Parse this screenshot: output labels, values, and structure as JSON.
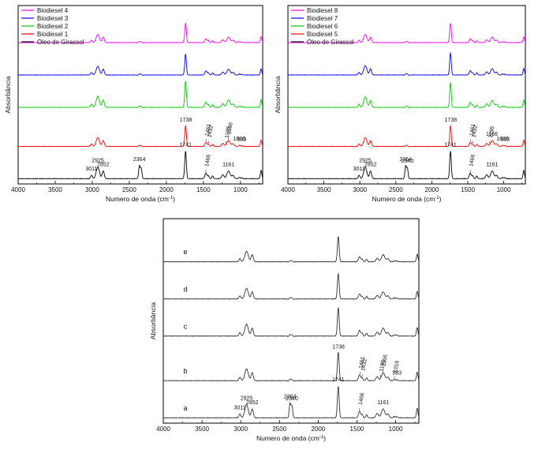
{
  "chart_data": [
    {
      "type": "line",
      "xlabel": "Numero de onda (cm",
      "xlabel_sup": "-1",
      "xlabel_end": ")",
      "ylabel": "Absorbância",
      "xlim": [
        4000,
        700
      ],
      "xticks": [
        4000,
        3500,
        3000,
        2500,
        2000,
        1500,
        1000
      ],
      "legend_position": "top-left",
      "legend": [
        "Biodiesel 4",
        "Biodiesel 3",
        "Biodiesel 2",
        "Biodiesel 1",
        "Óleo de Girassol"
      ],
      "series": [
        {
          "name": "Óleo de Girassol",
          "color": "#000000",
          "offset": 0.0,
          "scale": 1.0
        },
        {
          "name": "Biodiesel 1",
          "color": "#ff0000",
          "offset": 1.0,
          "scale": 0.75
        },
        {
          "name": "Biodiesel 2",
          "color": "#00cc00",
          "offset": 2.2,
          "scale": 0.95
        },
        {
          "name": "Biodiesel 3",
          "color": "#0000ff",
          "offset": 3.2,
          "scale": 0.75
        },
        {
          "name": "Biodiesel 4",
          "color": "#ff00ff",
          "offset": 4.2,
          "scale": 0.7
        }
      ],
      "annotations": [
        {
          "text": "3011",
          "x": 3011,
          "series": 0
        },
        {
          "text": "2925",
          "x": 2925,
          "series": 0
        },
        {
          "text": "2852",
          "x": 2852,
          "series": 0
        },
        {
          "text": "2364",
          "x": 2364,
          "series": 0
        },
        {
          "text": "1741",
          "x": 1741,
          "series": 0
        },
        {
          "text": "1466",
          "x": 1466,
          "series": 0,
          "rot": true
        },
        {
          "text": "1161",
          "x": 1161,
          "series": 0
        },
        {
          "text": "1738",
          "x": 1738,
          "series": 1
        },
        {
          "text": "1461",
          "x": 1461,
          "series": 1,
          "rot": true
        },
        {
          "text": "1432",
          "x": 1432,
          "series": 1,
          "rot": true
        },
        {
          "text": "1195",
          "x": 1195,
          "series": 1,
          "rot": true
        },
        {
          "text": "1166",
          "x": 1166,
          "series": 1,
          "rot": true
        },
        {
          "text": "1016",
          "x": 1016,
          "series": 1
        },
        {
          "text": "983",
          "x": 983,
          "series": 1
        }
      ]
    },
    {
      "type": "line",
      "xlabel": "Numero de onda (cm",
      "xlabel_sup": "-1",
      "xlabel_end": ")",
      "ylabel": "Absorbância",
      "xlim": [
        4000,
        700
      ],
      "xticks": [
        4000,
        3500,
        3000,
        2500,
        2000,
        1500,
        1000
      ],
      "legend_position": "top-left",
      "legend": [
        "Biodiesel 8",
        "Biodiesel 7",
        "Biodiesel 6",
        "Biodiesel 5",
        "Óleo de Girassol"
      ],
      "series": [
        {
          "name": "Óleo de Girassol",
          "color": "#000000",
          "offset": 0.0,
          "scale": 1.0
        },
        {
          "name": "Biodiesel 5",
          "color": "#ff0000",
          "offset": 1.0,
          "scale": 0.75
        },
        {
          "name": "Biodiesel 6",
          "color": "#00cc00",
          "offset": 2.2,
          "scale": 0.9
        },
        {
          "name": "Biodiesel 7",
          "color": "#0000ff",
          "offset": 3.2,
          "scale": 0.8
        },
        {
          "name": "Biodiesel 8",
          "color": "#ff00ff",
          "offset": 4.2,
          "scale": 0.7
        }
      ],
      "annotations": [
        {
          "text": "3011",
          "x": 3011,
          "series": 0
        },
        {
          "text": "2925",
          "x": 2925,
          "series": 0
        },
        {
          "text": "2852",
          "x": 2852,
          "series": 0
        },
        {
          "text": "2364",
          "x": 2364,
          "series": 0
        },
        {
          "text": "2340",
          "x": 2340,
          "series": 0
        },
        {
          "text": "1741",
          "x": 1741,
          "series": 0
        },
        {
          "text": "1466",
          "x": 1466,
          "series": 0,
          "rot": true
        },
        {
          "text": "1161",
          "x": 1161,
          "series": 0
        },
        {
          "text": "1738",
          "x": 1738,
          "series": 1
        },
        {
          "text": "1461",
          "x": 1461,
          "series": 1,
          "rot": true
        },
        {
          "text": "1432",
          "x": 1432,
          "series": 1,
          "rot": true
        },
        {
          "text": "1195",
          "x": 1195,
          "series": 1,
          "rot": true
        },
        {
          "text": "1166",
          "x": 1166,
          "series": 1
        },
        {
          "text": "1016",
          "x": 1016,
          "series": 1
        },
        {
          "text": "983",
          "x": 983,
          "series": 1
        }
      ]
    },
    {
      "type": "line",
      "xlabel": "Numero de onda (cm",
      "xlabel_sup": "-1",
      "xlabel_end": ")",
      "ylabel": "Absorbância",
      "xlim": [
        4000,
        700
      ],
      "xticks": [
        4000,
        3500,
        3000,
        2500,
        2000,
        1500,
        1000
      ],
      "panel_labels": [
        "a",
        "b",
        "c",
        "d",
        "e"
      ],
      "series": [
        {
          "name": "a",
          "color": "#333333",
          "offset": 0.0,
          "scale": 1.0
        },
        {
          "name": "b",
          "color": "#333333",
          "offset": 1.0,
          "scale": 0.9
        },
        {
          "name": "c",
          "color": "#333333",
          "offset": 2.2,
          "scale": 0.9
        },
        {
          "name": "d",
          "color": "#333333",
          "offset": 3.2,
          "scale": 0.8
        },
        {
          "name": "e",
          "color": "#333333",
          "offset": 4.2,
          "scale": 0.8
        }
      ],
      "annotations": [
        {
          "text": "3011",
          "x": 3011,
          "series": 0
        },
        {
          "text": "2925",
          "x": 2925,
          "series": 0
        },
        {
          "text": "2852",
          "x": 2852,
          "series": 0
        },
        {
          "text": "2364",
          "x": 2364,
          "series": 0
        },
        {
          "text": "2340",
          "x": 2340,
          "series": 0
        },
        {
          "text": "1741",
          "x": 1741,
          "series": 0
        },
        {
          "text": "1466",
          "x": 1466,
          "series": 0,
          "rot": true
        },
        {
          "text": "1161",
          "x": 1161,
          "series": 0
        },
        {
          "text": "1738",
          "x": 1738,
          "series": 1
        },
        {
          "text": "1461",
          "x": 1461,
          "series": 1,
          "rot": true
        },
        {
          "text": "1432",
          "x": 1432,
          "series": 1,
          "rot": true
        },
        {
          "text": "1195",
          "x": 1195,
          "series": 1,
          "rot": true
        },
        {
          "text": "1166",
          "x": 1166,
          "series": 1,
          "rot": true
        },
        {
          "text": "1016",
          "x": 1016,
          "series": 1,
          "rot": true
        },
        {
          "text": "983",
          "x": 983,
          "series": 1
        }
      ]
    }
  ]
}
